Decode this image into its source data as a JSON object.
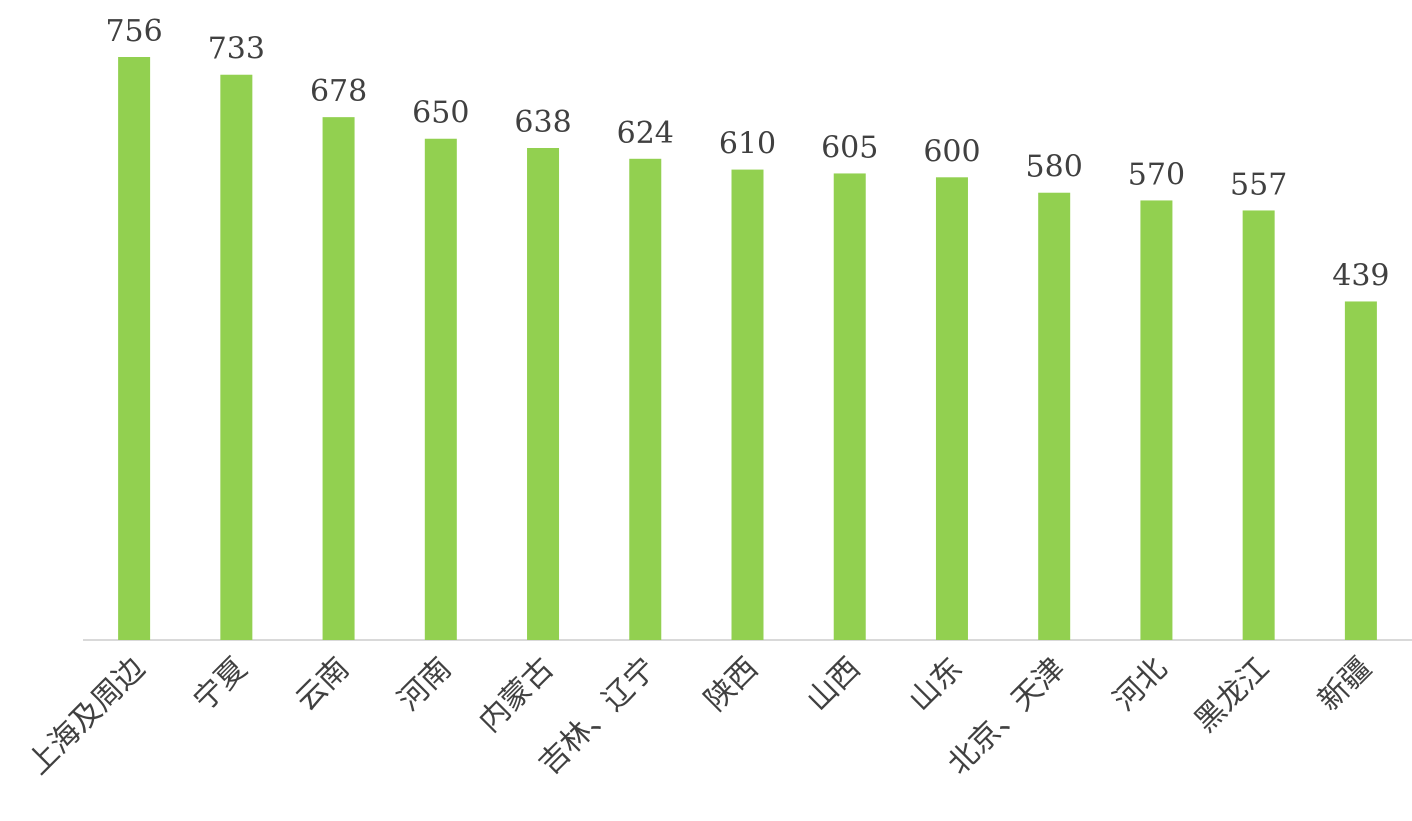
{
  "chart_data": {
    "type": "bar",
    "categories": [
      "上海及周边",
      "宁夏",
      "云南",
      "河南",
      "内蒙古",
      "吉林、辽宁",
      "陕西",
      "山西",
      "山东",
      "北京、天津",
      "河北",
      "黑龙江",
      "新疆"
    ],
    "values": [
      756,
      733,
      678,
      650,
      638,
      624,
      610,
      605,
      600,
      580,
      570,
      557,
      439
    ],
    "color": "#92d050"
  }
}
